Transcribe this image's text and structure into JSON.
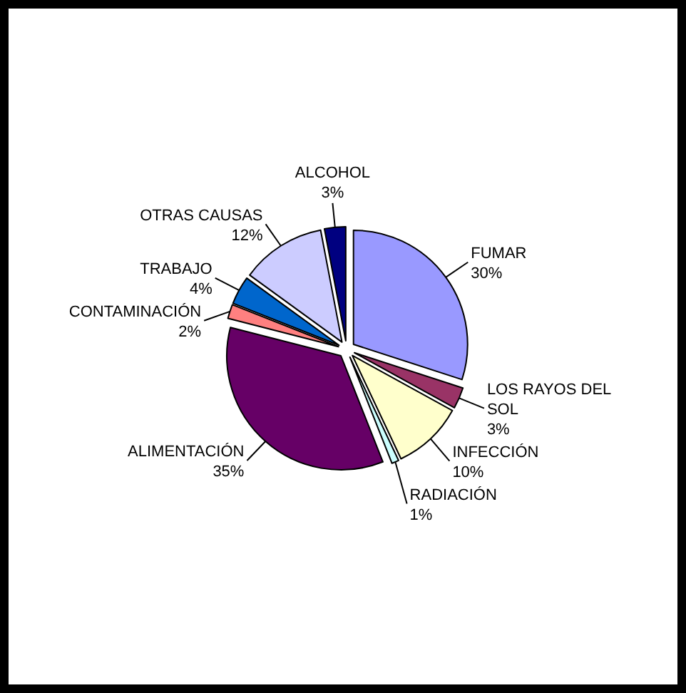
{
  "chart_data": {
    "type": "pie",
    "categories": [
      "FUMAR",
      "LOS RAYOS DEL SOL",
      "INFECCIÓN",
      "RADIACIÓN",
      "ALIMENTACIÓN",
      "CONTAMINACIÓN",
      "TRABAJO",
      "OTRAS CAUSAS",
      "ALCOHOL"
    ],
    "values": [
      30,
      3,
      10,
      1,
      35,
      2,
      4,
      12,
      3
    ],
    "colors": [
      "#9999ff",
      "#993366",
      "#ffffcc",
      "#ccffff",
      "#660066",
      "#ff8080",
      "#0066cc",
      "#ccccff",
      "#000080"
    ],
    "value_labels": [
      "30%",
      "3%",
      "10%",
      "1%",
      "35%",
      "2%",
      "4%",
      "12%",
      "3%"
    ]
  }
}
